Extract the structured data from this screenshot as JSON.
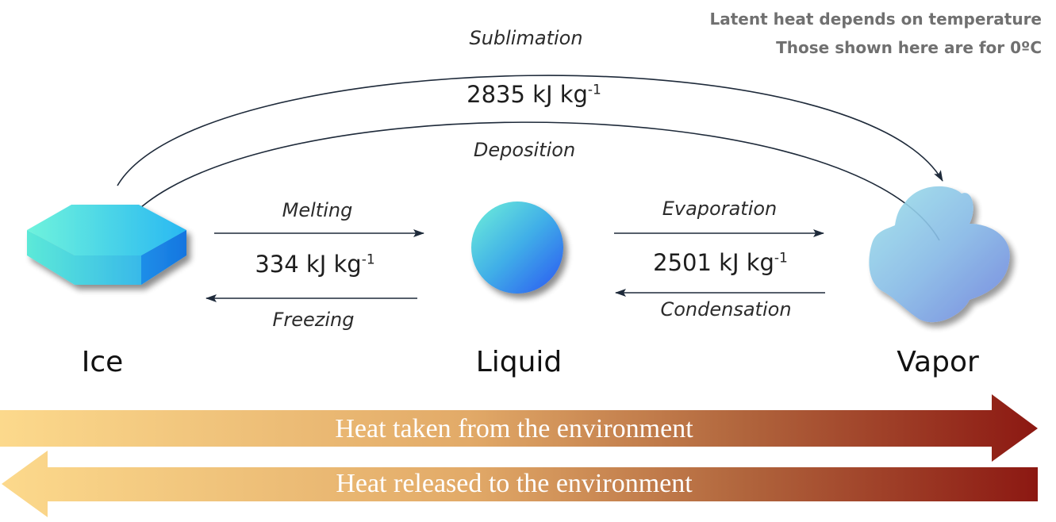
{
  "notes": {
    "line1": "Latent heat depends on temperature",
    "line2": "Those shown here are for 0ºC"
  },
  "processes": {
    "sublimation": "Sublimation",
    "deposition": "Deposition",
    "melting": "Melting",
    "freezing": "Freezing",
    "evaporation": "Evaporation",
    "condensation": "Condensation"
  },
  "latent_heats": {
    "ice_vapor": {
      "value": "2835 kJ kg",
      "exp": "-1"
    },
    "ice_liquid": {
      "value": "334 kJ kg",
      "exp": "-1"
    },
    "liquid_vapor": {
      "value": "2501 kJ kg",
      "exp": "-1"
    }
  },
  "phases": {
    "ice": "Ice",
    "liquid": "Liquid",
    "vapor": "Vapor"
  },
  "heat_bands": {
    "taken": "Heat taken from the environment",
    "released": "Heat released to the environment"
  },
  "colors": {
    "band_light": "#fcd88a",
    "band_dark": "#8e1a12",
    "ice": "#3fd9e4",
    "liquid": "#4f9de8",
    "vapor": "#8fc5e3",
    "arrow": "#1e2a3a"
  }
}
